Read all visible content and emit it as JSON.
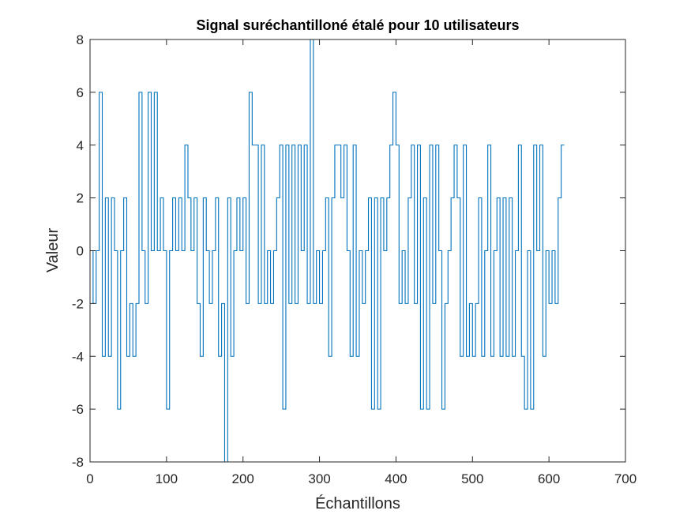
{
  "chart_data": {
    "type": "line",
    "title": "Signal suréchantilloné étalé pour 10 utilisateurs",
    "xlabel": "Échantillons",
    "ylabel": "Valeur",
    "xlim": [
      0,
      700
    ],
    "ylim": [
      -8,
      8
    ],
    "x_ticks": [
      0,
      100,
      200,
      300,
      400,
      500,
      600,
      700
    ],
    "y_ticks": [
      -8,
      -6,
      -4,
      -2,
      0,
      2,
      4,
      6,
      8
    ],
    "x_tick_labels": [
      "0",
      "100",
      "200",
      "300",
      "400",
      "500",
      "600",
      "700"
    ],
    "y_tick_labels": [
      "-8",
      "-6",
      "-4",
      "-2",
      "0",
      "2",
      "4",
      "6",
      "8"
    ],
    "grid": false,
    "line_color": "#0072bd",
    "sample_period": 4,
    "series": [
      {
        "values": [
          0,
          -2,
          0,
          6,
          -4,
          2,
          -4,
          2,
          0,
          -6,
          0,
          2,
          -4,
          -2,
          -4,
          -2,
          6,
          0,
          -2,
          6,
          0,
          6,
          0,
          2,
          0,
          -6,
          0,
          2,
          0,
          2,
          0,
          4,
          2,
          0,
          2,
          -2,
          -4,
          2,
          0,
          -2,
          0,
          2,
          -4,
          -2,
          -8,
          2,
          -4,
          0,
          2,
          0,
          2,
          -2,
          6,
          4,
          4,
          -2,
          4,
          -2,
          0,
          -2,
          0,
          2,
          4,
          -6,
          4,
          -2,
          4,
          -2,
          4,
          0,
          4,
          -2,
          8,
          -2,
          0,
          -2,
          0,
          2,
          -4,
          2,
          4,
          4,
          2,
          4,
          0,
          -4,
          4,
          -4,
          0,
          -2,
          0,
          2,
          -6,
          2,
          -6,
          2,
          0,
          2,
          4,
          6,
          4,
          -2,
          0,
          -2,
          2,
          4,
          -2,
          4,
          -6,
          2,
          -6,
          4,
          -2,
          4,
          0,
          -6,
          -2,
          0,
          2,
          4,
          2,
          -4,
          4,
          -4,
          -2,
          -4,
          -2,
          2,
          -4,
          0,
          4,
          -4,
          0,
          2,
          -4,
          2,
          -4,
          2,
          -4,
          0,
          4,
          -4,
          -6,
          0,
          -6,
          4,
          0,
          4,
          -4,
          0,
          -2,
          0,
          -2,
          2,
          4
        ]
      }
    ]
  }
}
